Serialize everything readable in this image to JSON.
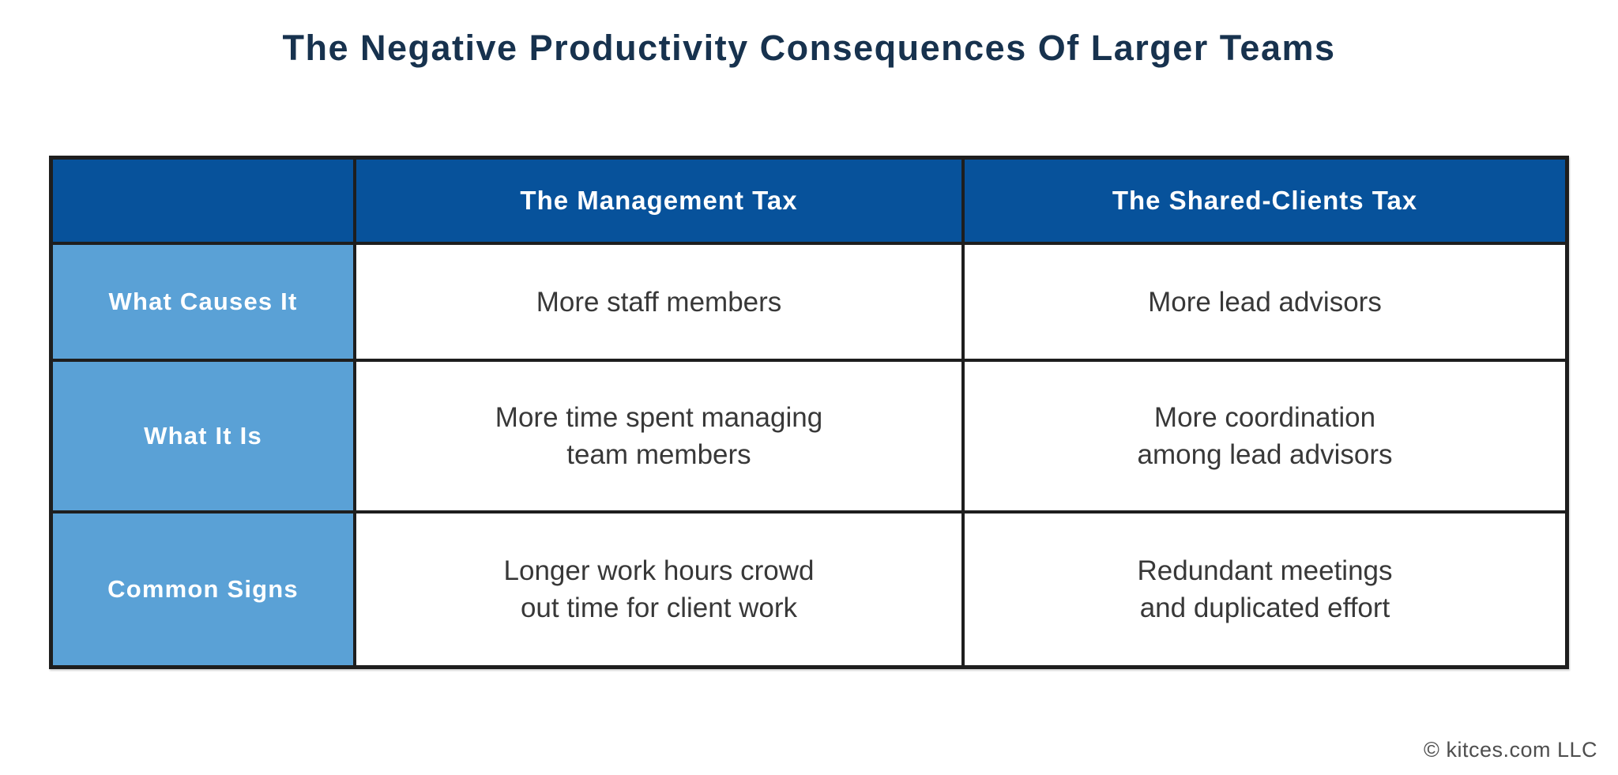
{
  "title": "The Negative Productivity Consequences Of Larger Teams",
  "chart_data": {
    "type": "table",
    "title": "The Negative Productivity Consequences Of Larger Teams",
    "columns": [
      "",
      "The Management Tax",
      "The Shared-Clients Tax"
    ],
    "rows": [
      [
        "What Causes It",
        "More staff members",
        "More lead advisors"
      ],
      [
        "What It Is",
        "More time spent managing team members",
        "More coordination among lead advisors"
      ],
      [
        "Common Signs",
        "Longer work hours crowd out time for client work",
        "Redundant meetings and duplicated effort"
      ]
    ],
    "legend_position": "none",
    "grid": "black cell borders, dark-blue header row, light-blue label column"
  },
  "table_display": {
    "corner": "",
    "col_headers": [
      "The Management Tax",
      "The Shared-Clients Tax"
    ],
    "rows": [
      {
        "label": "What Causes It",
        "cells": [
          "More staff members",
          "More lead advisors"
        ]
      },
      {
        "label": "What It Is",
        "cells": [
          "More time spent managing\nteam members",
          "More coordination\namong lead advisors"
        ]
      },
      {
        "label": "Common Signs",
        "cells": [
          "Longer work hours crowd\nout time for client work",
          "Redundant meetings\nand duplicated effort"
        ]
      }
    ]
  },
  "footer": {
    "copyright": "© kitces.com LLC"
  },
  "colors": {
    "header_bg": "#07529B",
    "label_bg": "#5AA1D6",
    "title_text": "#17324E",
    "body_text": "#383838",
    "border": "#1E1E1E",
    "footer_text": "#4E4E4E"
  }
}
